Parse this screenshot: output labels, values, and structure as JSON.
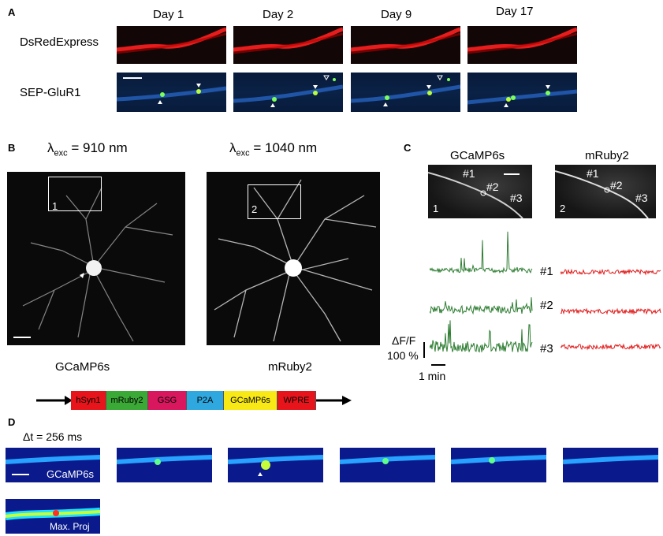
{
  "panels": {
    "A": {
      "label": "A",
      "days": [
        "Day 1",
        "Day 2",
        "Day 9",
        "Day 17"
      ],
      "rows": [
        "DsRedExpress",
        "SEP-GluR1"
      ]
    },
    "B": {
      "label": "B",
      "left_exc_prefix": "λ",
      "left_exc_sub": "exc",
      "left_exc_value": " = 910 nm",
      "right_exc_prefix": "λ",
      "right_exc_sub": "exc",
      "right_exc_value": " = 1040 nm",
      "box1": "1",
      "box2": "2",
      "left_caption": "GCaMP6s",
      "right_caption": "mRuby2",
      "construct": [
        "hSyn1",
        "mRuby2",
        "GSG",
        "P2A",
        "GCaMP6s",
        "WPRE"
      ],
      "construct_colors": [
        "#e8141c",
        "#3aa935",
        "#d8175f",
        "#2fa8df",
        "#f7e816",
        "#e8141c"
      ]
    },
    "C": {
      "label": "C",
      "left_title": "GCaMP6s",
      "right_title": "mRuby2",
      "left_roi": [
        "#1",
        "#2",
        "#3"
      ],
      "right_roi": [
        "#1",
        "#2",
        "#3"
      ],
      "left_num": "1",
      "right_num": "2",
      "trace_labels": [
        "#1",
        "#2",
        "#3"
      ],
      "y_scale_line1": "ΔF/F",
      "y_scale_line2": "100 %",
      "x_scale": "1 min",
      "green_color": "#2e7d32",
      "red_color": "#e01b1b"
    },
    "D": {
      "label": "D",
      "dt": "Δt = 256 ms",
      "first_frame_label": "GCaMP6s",
      "max_label": "Max. Proj"
    }
  }
}
